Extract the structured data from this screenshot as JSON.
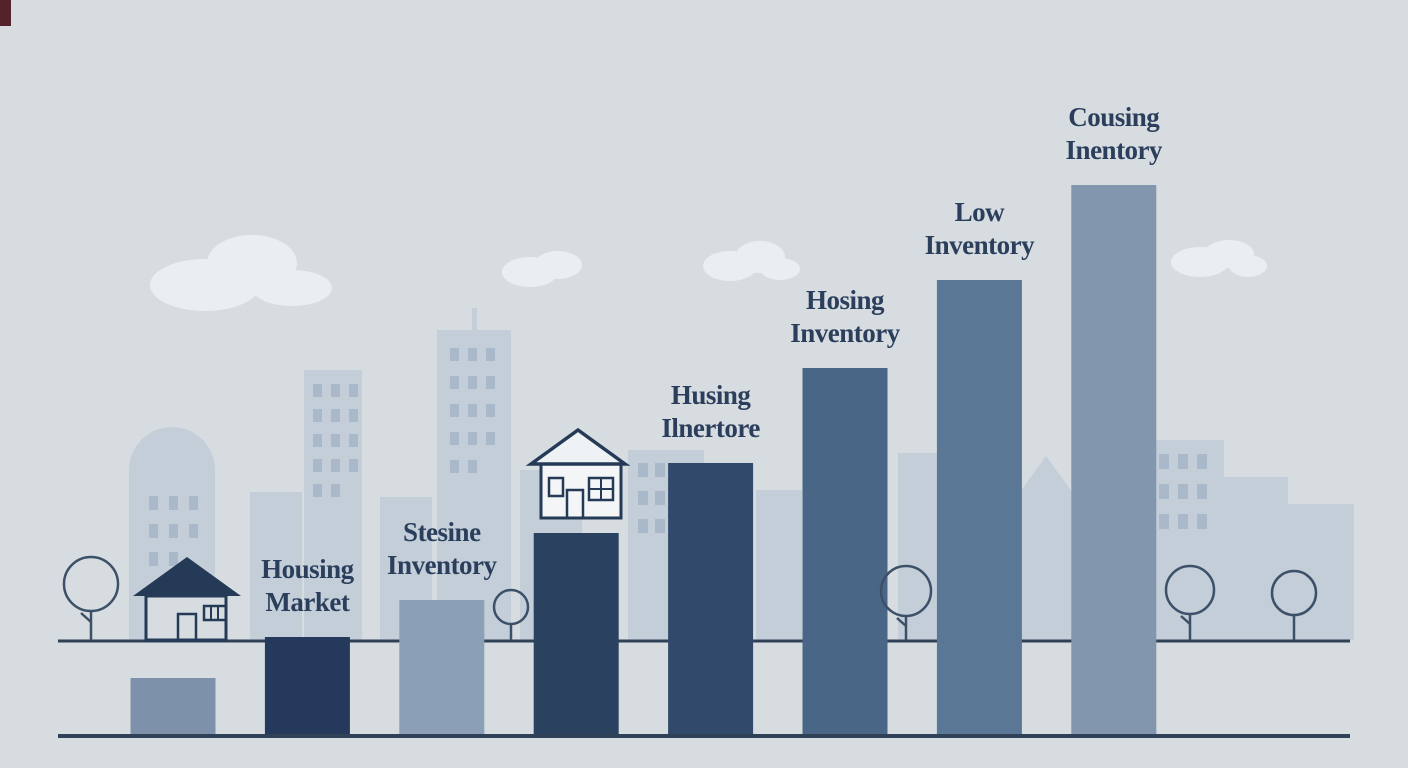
{
  "scene": {
    "background_color": "#d7dce1",
    "skyline_color": "#c3ced9",
    "window_color": "#a9b9c9",
    "cloud_color": "#eaeef2",
    "line_color": "#2e4156",
    "label_color": "#2b3f5c",
    "outline_color": "#243a56",
    "icons": [
      {
        "name": "house-icon-left",
        "style": "filled-roof outline house"
      },
      {
        "name": "house-icon-middle",
        "style": "outline house above bar"
      },
      {
        "name": "tree-icon",
        "count": 5
      },
      {
        "name": "cloud-icon",
        "count": 4
      },
      {
        "name": "city-skyline-icon",
        "count": 1
      }
    ]
  },
  "chart_data": {
    "type": "bar",
    "title": "",
    "xlabel": "",
    "ylabel": "",
    "value_basis": "relative bar height in pixels (no axis shown in illustration)",
    "categories": [
      "",
      "Housing Market",
      "Stesine Inventory",
      "",
      "Husing Ilnertore",
      "Hosing Inventory",
      "Low Inventory",
      "Cousing Inentory"
    ],
    "values": [
      57,
      98,
      135,
      202,
      272,
      367,
      455,
      550
    ],
    "ylim": [
      0,
      560
    ],
    "grid": false,
    "legend": false,
    "bars": [
      {
        "label_lines": [],
        "value": 57,
        "color": "#7d92aa"
      },
      {
        "label_lines": [
          "Housing",
          "Market"
        ],
        "value": 98,
        "color": "#24395b"
      },
      {
        "label_lines": [
          "Stesine",
          "Inventory"
        ],
        "value": 135,
        "color": "#8ba0b7"
      },
      {
        "label_lines": [],
        "value": 202,
        "color": "#2a4260"
      },
      {
        "label_lines": [
          "Husing",
          "Ilnertore"
        ],
        "value": 272,
        "color": "#31496b"
      },
      {
        "label_lines": [
          "Hosing",
          "Inventory"
        ],
        "value": 367,
        "color": "#4a6687"
      },
      {
        "label_lines": [
          "Low",
          "Inventory"
        ],
        "value": 455,
        "color": "#5a7795"
      },
      {
        "label_lines": [
          "Cousing",
          "Inentory"
        ],
        "value": 550,
        "color": "#8296ad"
      }
    ]
  }
}
